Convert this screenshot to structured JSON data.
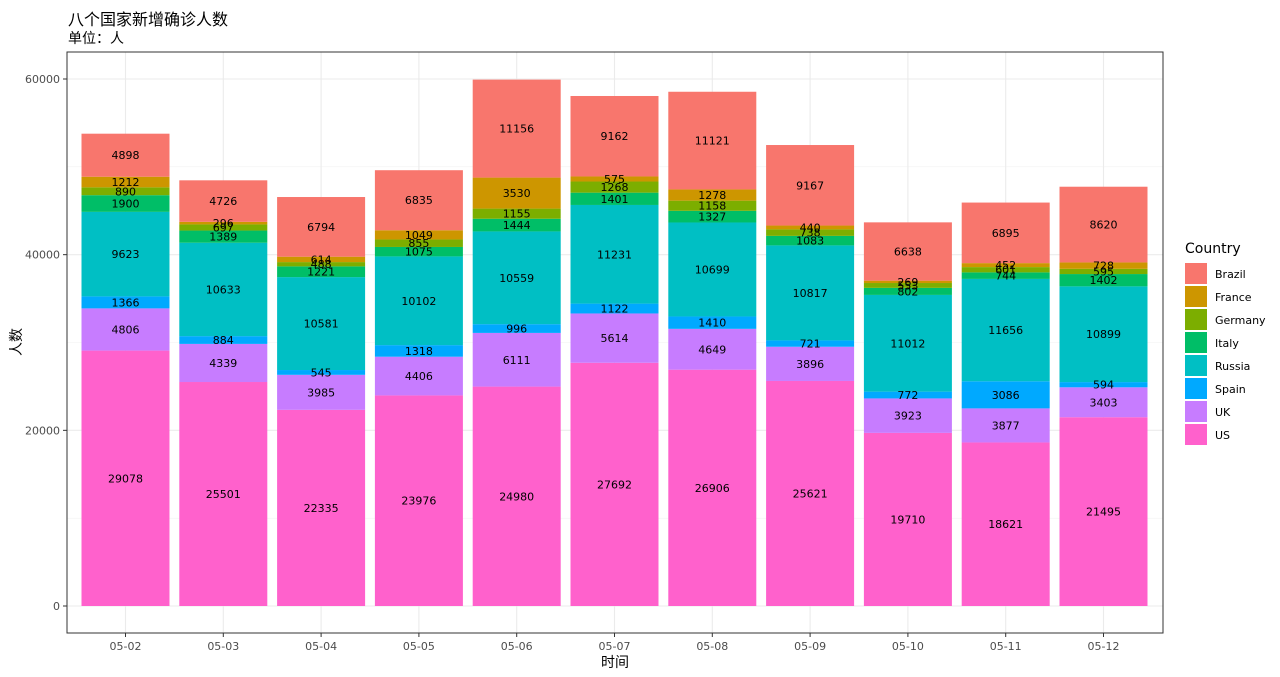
{
  "chart_data": {
    "type": "bar",
    "stacked": true,
    "title": "八个国家新增确诊人数",
    "subtitle": "单位：人",
    "xlabel": "时间",
    "ylabel": "人数",
    "ylim": [
      0,
      63000
    ],
    "yticks": [
      0,
      20000,
      40000,
      60000
    ],
    "grid": true,
    "legend_title": "Country",
    "legend_position": "right",
    "categories": [
      "05-02",
      "05-03",
      "05-04",
      "05-05",
      "05-06",
      "05-07",
      "05-08",
      "05-09",
      "05-10",
      "05-11",
      "05-12"
    ],
    "series": [
      {
        "name": "US",
        "color": "#FF61CC",
        "values": [
          29078,
          25501,
          22335,
          23976,
          24980,
          27692,
          26906,
          25621,
          19710,
          18621,
          21495
        ]
      },
      {
        "name": "UK",
        "color": "#C77CFF",
        "values": [
          4806,
          4339,
          3985,
          4406,
          6111,
          5614,
          4649,
          3896,
          3923,
          3877,
          3403
        ]
      },
      {
        "name": "Spain",
        "color": "#00A9FF",
        "values": [
          1366,
          884,
          545,
          1318,
          996,
          1122,
          1410,
          721,
          772,
          3086,
          594
        ]
      },
      {
        "name": "Russia",
        "color": "#00BFC4",
        "values": [
          9623,
          10633,
          10581,
          10102,
          10559,
          11231,
          10699,
          10817,
          11012,
          11656,
          10899
        ]
      },
      {
        "name": "Italy",
        "color": "#00BE67",
        "values": [
          1900,
          1389,
          1221,
          1075,
          1444,
          1401,
          1327,
          1083,
          802,
          744,
          1402
        ]
      },
      {
        "name": "Germany",
        "color": "#7CAE00",
        "values": [
          890,
          697,
          488,
          855,
          1155,
          1268,
          1158,
          738,
          553,
          601,
          595
        ]
      },
      {
        "name": "France",
        "color": "#CD9600",
        "values": [
          1212,
          296,
          614,
          1049,
          3530,
          575,
          1278,
          440,
          269,
          452,
          728
        ]
      },
      {
        "name": "Brazil",
        "color": "#F8766D",
        "values": [
          4898,
          4726,
          6794,
          6835,
          11156,
          9162,
          11121,
          9167,
          6638,
          6895,
          8620
        ]
      }
    ],
    "legend_order": [
      "Brazil",
      "France",
      "Germany",
      "Italy",
      "Russia",
      "Spain",
      "UK",
      "US"
    ]
  }
}
